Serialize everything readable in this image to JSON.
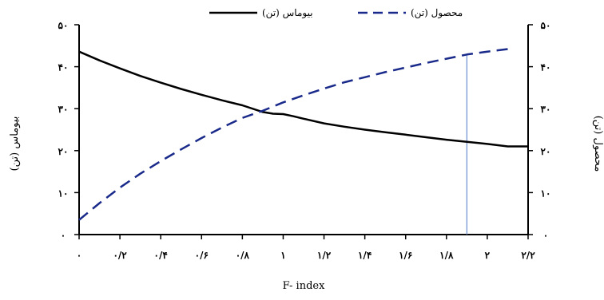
{
  "chart_data": {
    "type": "line",
    "xlabel": "F- index",
    "ylabel_left": "بیوماس (تن)",
    "ylabel_right": "محصول (تن)",
    "xlim": [
      0,
      2.2
    ],
    "ylim_left": [
      0,
      50
    ],
    "ylim_right": [
      0,
      50
    ],
    "x_ticks": [
      0,
      0.2,
      0.4,
      0.6,
      0.8,
      1,
      1.2,
      1.4,
      1.6,
      1.8,
      2,
      2.2
    ],
    "x_tick_labels": [
      "۰",
      "۰/۲",
      "۰/۴",
      "۰/۶",
      "۰/۸",
      "۱",
      "۱/۲",
      "۱/۴",
      "۱/۶",
      "۱/۸",
      "۲",
      "۲/۲"
    ],
    "y_ticks": [
      0,
      10,
      20,
      30,
      40,
      50
    ],
    "y_tick_labels": [
      "۰",
      "۱۰",
      "۲۰",
      "۳۰",
      "۴۰",
      "۵۰"
    ],
    "legend_position": "top",
    "grid": false,
    "series": [
      {
        "name": "بیوماس (تن)",
        "axis": "left",
        "style": "solid",
        "color": "#000000",
        "x": [
          0,
          0.1,
          0.2,
          0.3,
          0.4,
          0.5,
          0.6,
          0.7,
          0.8,
          0.9,
          0.95,
          1.0,
          1.05,
          1.1,
          1.2,
          1.3,
          1.4,
          1.5,
          1.6,
          1.7,
          1.8,
          1.9,
          2.0,
          2.1,
          2.2
        ],
        "values": [
          43.6,
          41.5,
          39.6,
          37.8,
          36.2,
          34.7,
          33.3,
          32.0,
          30.8,
          29.2,
          28.8,
          28.7,
          28.2,
          27.6,
          26.5,
          25.7,
          25.0,
          24.4,
          23.8,
          23.2,
          22.6,
          22.1,
          21.6,
          21.0,
          21.0
        ]
      },
      {
        "name": "محصول (تن)",
        "axis": "right",
        "style": "dashed",
        "color": "#1a2a8a",
        "x": [
          0,
          0.1,
          0.2,
          0.3,
          0.4,
          0.5,
          0.6,
          0.7,
          0.8,
          0.9,
          1.0,
          1.1,
          1.2,
          1.3,
          1.4,
          1.5,
          1.6,
          1.7,
          1.8,
          1.9,
          2.0,
          2.1
        ],
        "values": [
          3.5,
          7.5,
          11.2,
          14.5,
          17.5,
          20.3,
          23.0,
          25.5,
          27.8,
          29.5,
          31.5,
          33.2,
          34.8,
          36.3,
          37.5,
          38.7,
          39.8,
          40.9,
          41.9,
          42.9,
          43.6,
          44.2
        ]
      }
    ],
    "annotations": [
      {
        "type": "vertical_line",
        "x": 1.9,
        "y_top": 42.9,
        "axis": "right",
        "color": "#6a8fd0"
      }
    ]
  }
}
